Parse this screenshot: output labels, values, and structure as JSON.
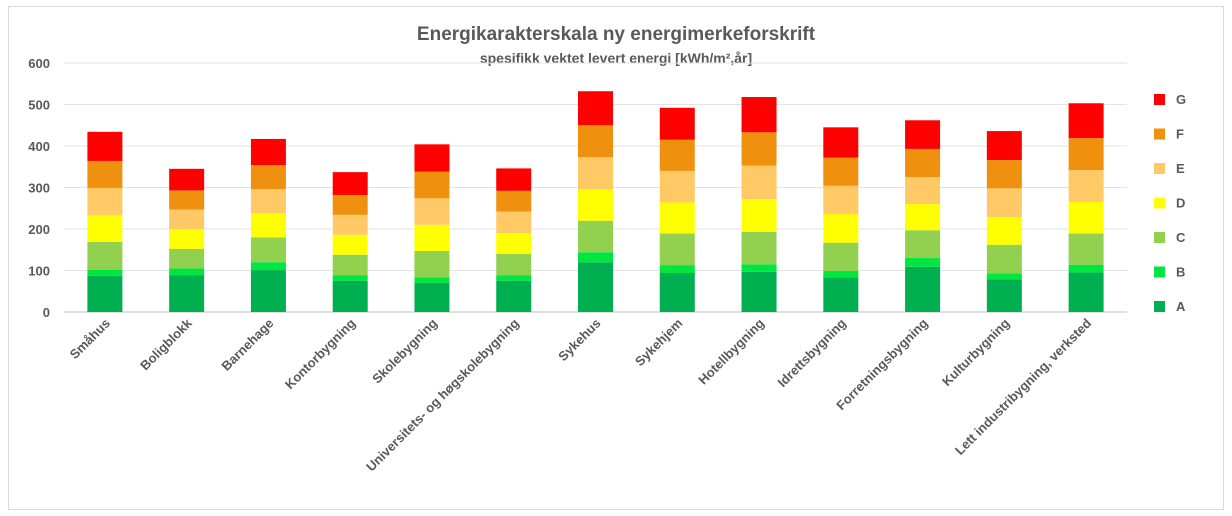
{
  "chart_data": {
    "type": "bar",
    "stacked": true,
    "title": "Energikarakterskala ny energimerkeforskrift",
    "subtitle": "spesifikk vektet levert energi [kWh/m²,år]",
    "xlabel": "",
    "ylabel": "",
    "ylim": [
      0,
      600
    ],
    "yticks": [
      "0",
      "100",
      "200",
      "300",
      "400",
      "500",
      "600"
    ],
    "grid": true,
    "legend_position": "right",
    "categories": [
      "Småhus",
      "Boligblokk",
      "Barnehage",
      "Kontorbygning",
      "Skolebygning",
      "Universitets- og høgskolebygning",
      "Sykehus",
      "Sykehjem",
      "Hotellbygning",
      "Idrettsbygning",
      "Forretningsbygning",
      "Kulturbygning",
      "Lett industribygning, verksted"
    ],
    "series": [
      {
        "name": "A",
        "color": "#00b050",
        "values": [
          87,
          88,
          101,
          75,
          70,
          75,
          120,
          94,
          97,
          83,
          109,
          79,
          95
        ]
      },
      {
        "name": "B",
        "color": "#00e640",
        "values": [
          15,
          17,
          19,
          13,
          13,
          13,
          24,
          19,
          18,
          16,
          21,
          14,
          19
        ]
      },
      {
        "name": "C",
        "color": "#92d050",
        "values": [
          67,
          47,
          60,
          50,
          64,
          52,
          76,
          76,
          78,
          68,
          67,
          69,
          75
        ]
      },
      {
        "name": "D",
        "color": "#ffff00",
        "values": [
          64,
          48,
          58,
          48,
          63,
          50,
          76,
          75,
          79,
          69,
          63,
          67,
          76
        ]
      },
      {
        "name": "E",
        "color": "#ffc966",
        "values": [
          66,
          47,
          58,
          48,
          64,
          52,
          77,
          76,
          81,
          68,
          65,
          69,
          77
        ]
      },
      {
        "name": "F",
        "color": "#f0900f",
        "values": [
          65,
          46,
          58,
          48,
          64,
          50,
          77,
          75,
          80,
          68,
          68,
          68,
          77
        ]
      },
      {
        "name": "G",
        "color": "#ff0000",
        "values": [
          70,
          52,
          63,
          55,
          66,
          54,
          82,
          77,
          85,
          73,
          69,
          70,
          84
        ]
      }
    ]
  }
}
